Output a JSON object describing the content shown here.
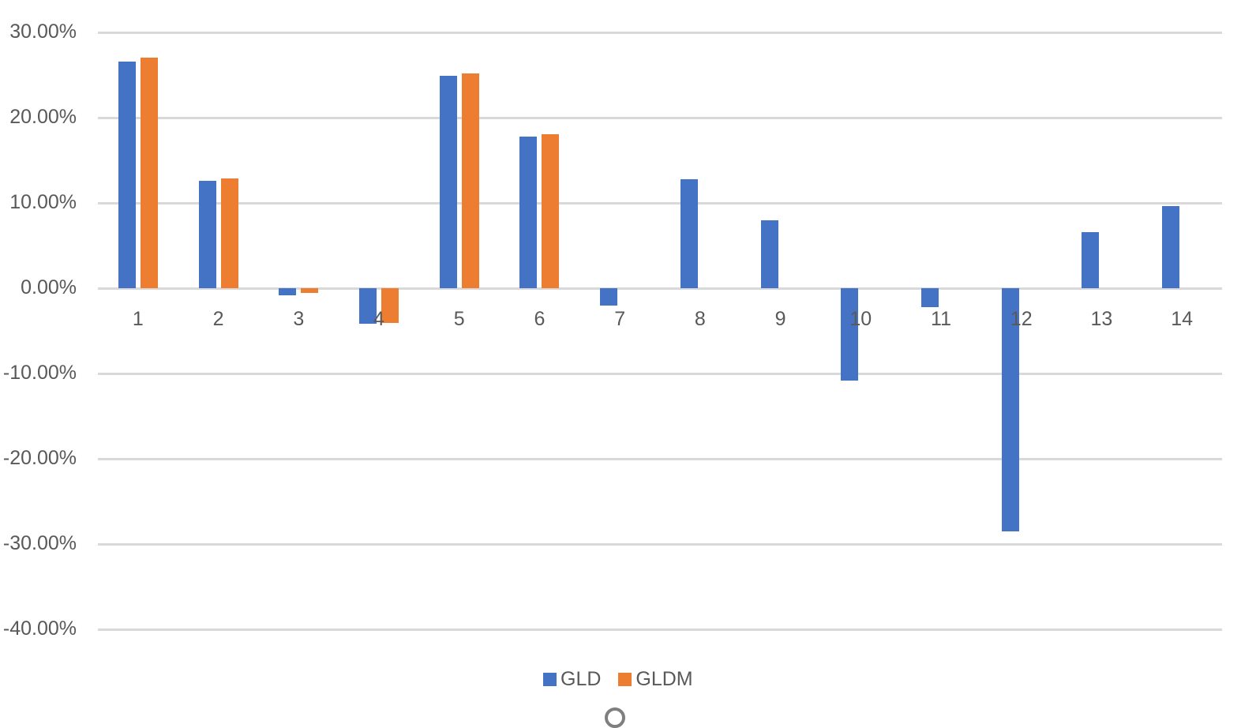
{
  "chart_data": {
    "type": "bar",
    "title": "",
    "xlabel": "",
    "ylabel": "",
    "categories": [
      "1",
      "2",
      "3",
      "4",
      "5",
      "6",
      "7",
      "8",
      "9",
      "10",
      "11",
      "12",
      "13",
      "14"
    ],
    "series": [
      {
        "name": "GLD",
        "color": "#4472c4",
        "values": [
          26.6,
          12.6,
          -0.8,
          -4.2,
          24.9,
          17.8,
          -2.0,
          12.8,
          8.0,
          -10.8,
          -2.2,
          -28.5,
          6.6,
          9.6
        ]
      },
      {
        "name": "GLDM",
        "color": "#ed7d31",
        "values": [
          27.0,
          12.9,
          -0.55,
          -4.1,
          25.2,
          18.1,
          null,
          null,
          null,
          null,
          null,
          null,
          null,
          null
        ]
      }
    ],
    "ylim": [
      -40,
      30
    ],
    "yticks": [
      30,
      20,
      10,
      0,
      -10,
      -20,
      -30,
      -40
    ],
    "ytick_labels": [
      "30.00%",
      "20.00%",
      "10.00%",
      "0.00%",
      "-10.00%",
      "-20.00%",
      "-30.00%",
      "-40.00%"
    ],
    "grid": true,
    "legend_position": "bottom"
  },
  "legend": {
    "items": [
      {
        "label": "GLD",
        "color": "#4472c4"
      },
      {
        "label": "GLDM",
        "color": "#ed7d31"
      }
    ]
  },
  "colors": {
    "gridline": "#d9d9d9",
    "text": "#595959",
    "gld": "#4472c4",
    "gldm": "#ed7d31"
  }
}
